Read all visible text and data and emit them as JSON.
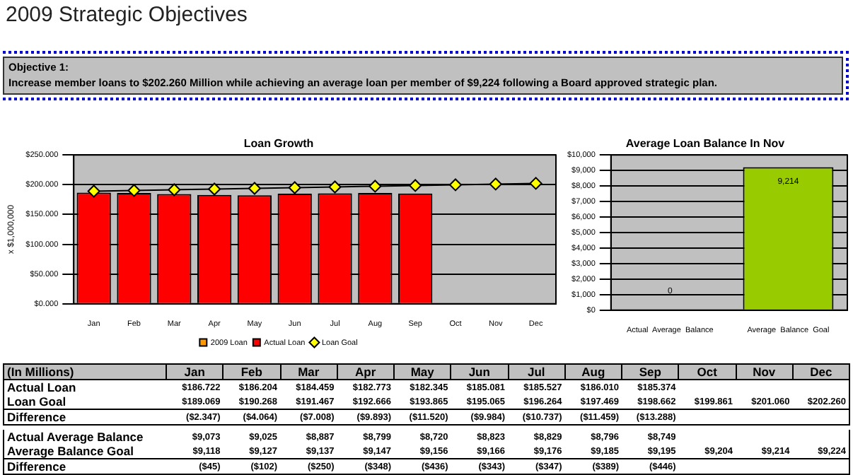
{
  "chart_data": [
    {
      "type": "bar",
      "title": "Loan Growth",
      "ylabel": "x $1,000,000",
      "annotations": [
        "2009 Strategic Objectives",
        "Objective 1:",
        "Increase member loans to $202.260 Million while achieving an average loan per member of $9,224 following a Board approved strategic plan."
      ],
      "categories": [
        "Jan",
        "Feb",
        "Mar",
        "Apr",
        "May",
        "Jun",
        "Jul",
        "Aug",
        "Sep",
        "Oct",
        "Nov",
        "Dec"
      ],
      "series": [
        {
          "name": "2009 Loan",
          "color": "#ff9900",
          "values": [
            null,
            null,
            null,
            null,
            null,
            null,
            null,
            null,
            null,
            null,
            null,
            null
          ]
        },
        {
          "name": "Actual Loan",
          "color": "#ff0000",
          "values": [
            186.722,
            186.204,
            184.459,
            182.773,
            182.345,
            185.081,
            185.527,
            186.01,
            185.374,
            null,
            null,
            null
          ]
        },
        {
          "name": "Loan Goal",
          "type": "line",
          "color": "#ffff00",
          "marker": "diamond",
          "values": [
            189.069,
            190.268,
            191.467,
            192.666,
            193.865,
            195.065,
            196.264,
            197.469,
            198.662,
            199.861,
            201.06,
            202.26
          ]
        }
      ],
      "ylim": [
        0,
        250
      ],
      "yticks": [
        {
          "value": 0,
          "label": "$0.000"
        },
        {
          "value": 50,
          "label": "$50.000"
        },
        {
          "value": 100,
          "label": "$100.000"
        },
        {
          "value": 150,
          "label": "$150.000"
        },
        {
          "value": 200,
          "label": "$200.000"
        },
        {
          "value": 250,
          "label": "$250.000"
        }
      ],
      "grid": "y",
      "legend": "bottom"
    },
    {
      "type": "bar",
      "title": "Average Loan Balance In Nov",
      "categories": [
        "Actual  Average  Balance",
        "Average  Balance  Goal"
      ],
      "values": [
        0,
        9214
      ],
      "colors": [
        "#99cc00",
        "#99cc00"
      ],
      "value_labels": [
        "0",
        "9,214"
      ],
      "ylim": [
        0,
        10000
      ],
      "yticks": [
        {
          "value": 0,
          "label": "$0"
        },
        {
          "value": 1000,
          "label": "$1,000"
        },
        {
          "value": 2000,
          "label": "$2,000"
        },
        {
          "value": 3000,
          "label": "$3,000"
        },
        {
          "value": 4000,
          "label": "$4,000"
        },
        {
          "value": 5000,
          "label": "$5,000"
        },
        {
          "value": 6000,
          "label": "$6,000"
        },
        {
          "value": 7000,
          "label": "$7,000"
        },
        {
          "value": 8000,
          "label": "$8,000"
        },
        {
          "value": 9000,
          "label": "$9,000"
        },
        {
          "value": 10000,
          "label": "$10,000"
        }
      ],
      "grid": "y"
    },
    {
      "type": "other",
      "title": "(In Millions)",
      "categories": [
        "Jan",
        "Feb",
        "Mar",
        "Apr",
        "May",
        "Jun",
        "Jul",
        "Aug",
        "Sep",
        "Oct",
        "Nov",
        "Dec"
      ],
      "series": [
        {
          "name": "Actual Loan",
          "values": [
            186.722,
            186.204,
            184.459,
            182.773,
            182.345,
            185.081,
            185.527,
            186.01,
            185.374,
            null,
            null,
            null
          ],
          "value_labels": [
            "$186.722",
            "$186.204",
            "$184.459",
            "$182.773",
            "$182.345",
            "$185.081",
            "$185.527",
            "$186.010",
            "$185.374",
            null,
            null,
            null
          ]
        },
        {
          "name": "Loan Goal",
          "values": [
            189.069,
            190.268,
            191.467,
            192.666,
            193.865,
            195.065,
            196.264,
            197.469,
            198.662,
            199.861,
            201.06,
            202.26
          ],
          "value_labels": [
            "$189.069",
            "$190.268",
            "$191.467",
            "$192.666",
            "$193.865",
            "$195.065",
            "$196.264",
            "$197.469",
            "$198.662",
            "$199.861",
            "$201.060",
            "$202.260"
          ]
        },
        {
          "name": "Difference",
          "values": [
            -2.347,
            -4.064,
            -7.008,
            -9.893,
            -11.52,
            -9.984,
            -10.737,
            -11.459,
            -13.288,
            null,
            null,
            null
          ],
          "value_labels": [
            "($2.347)",
            "($4.064)",
            "($7.008)",
            "($9.893)",
            "($11.520)",
            "($9.984)",
            "($10.737)",
            "($11.459)",
            "($13.288)",
            null,
            null,
            null
          ]
        },
        {
          "name": "Actual Average Balance",
          "values": [
            9073,
            9025,
            8887,
            8799,
            8720,
            8823,
            8829,
            8796,
            8749,
            null,
            null,
            null
          ],
          "value_labels": [
            "$9,073",
            "$9,025",
            "$8,887",
            "$8,799",
            "$8,720",
            "$8,823",
            "$8,829",
            "$8,796",
            "$8,749",
            null,
            null,
            null
          ]
        },
        {
          "name": "Average Balance Goal",
          "values": [
            9118,
            9127,
            9137,
            9147,
            9156,
            9166,
            9176,
            9185,
            9195,
            9204,
            9214,
            9224
          ],
          "value_labels": [
            "$9,118",
            "$9,127",
            "$9,137",
            "$9,147",
            "$9,156",
            "$9,166",
            "$9,176",
            "$9,185",
            "$9,195",
            "$9,204",
            "$9,214",
            "$9,224"
          ]
        },
        {
          "name": "Difference",
          "values": [
            -45,
            -102,
            -250,
            -348,
            -436,
            -343,
            -347,
            -389,
            -446,
            null,
            null,
            null
          ],
          "value_labels": [
            "($45)",
            "($102)",
            "($250)",
            "($348)",
            "($436)",
            "($343)",
            "($347)",
            "($389)",
            "($446)",
            null,
            null,
            null
          ]
        }
      ]
    }
  ]
}
